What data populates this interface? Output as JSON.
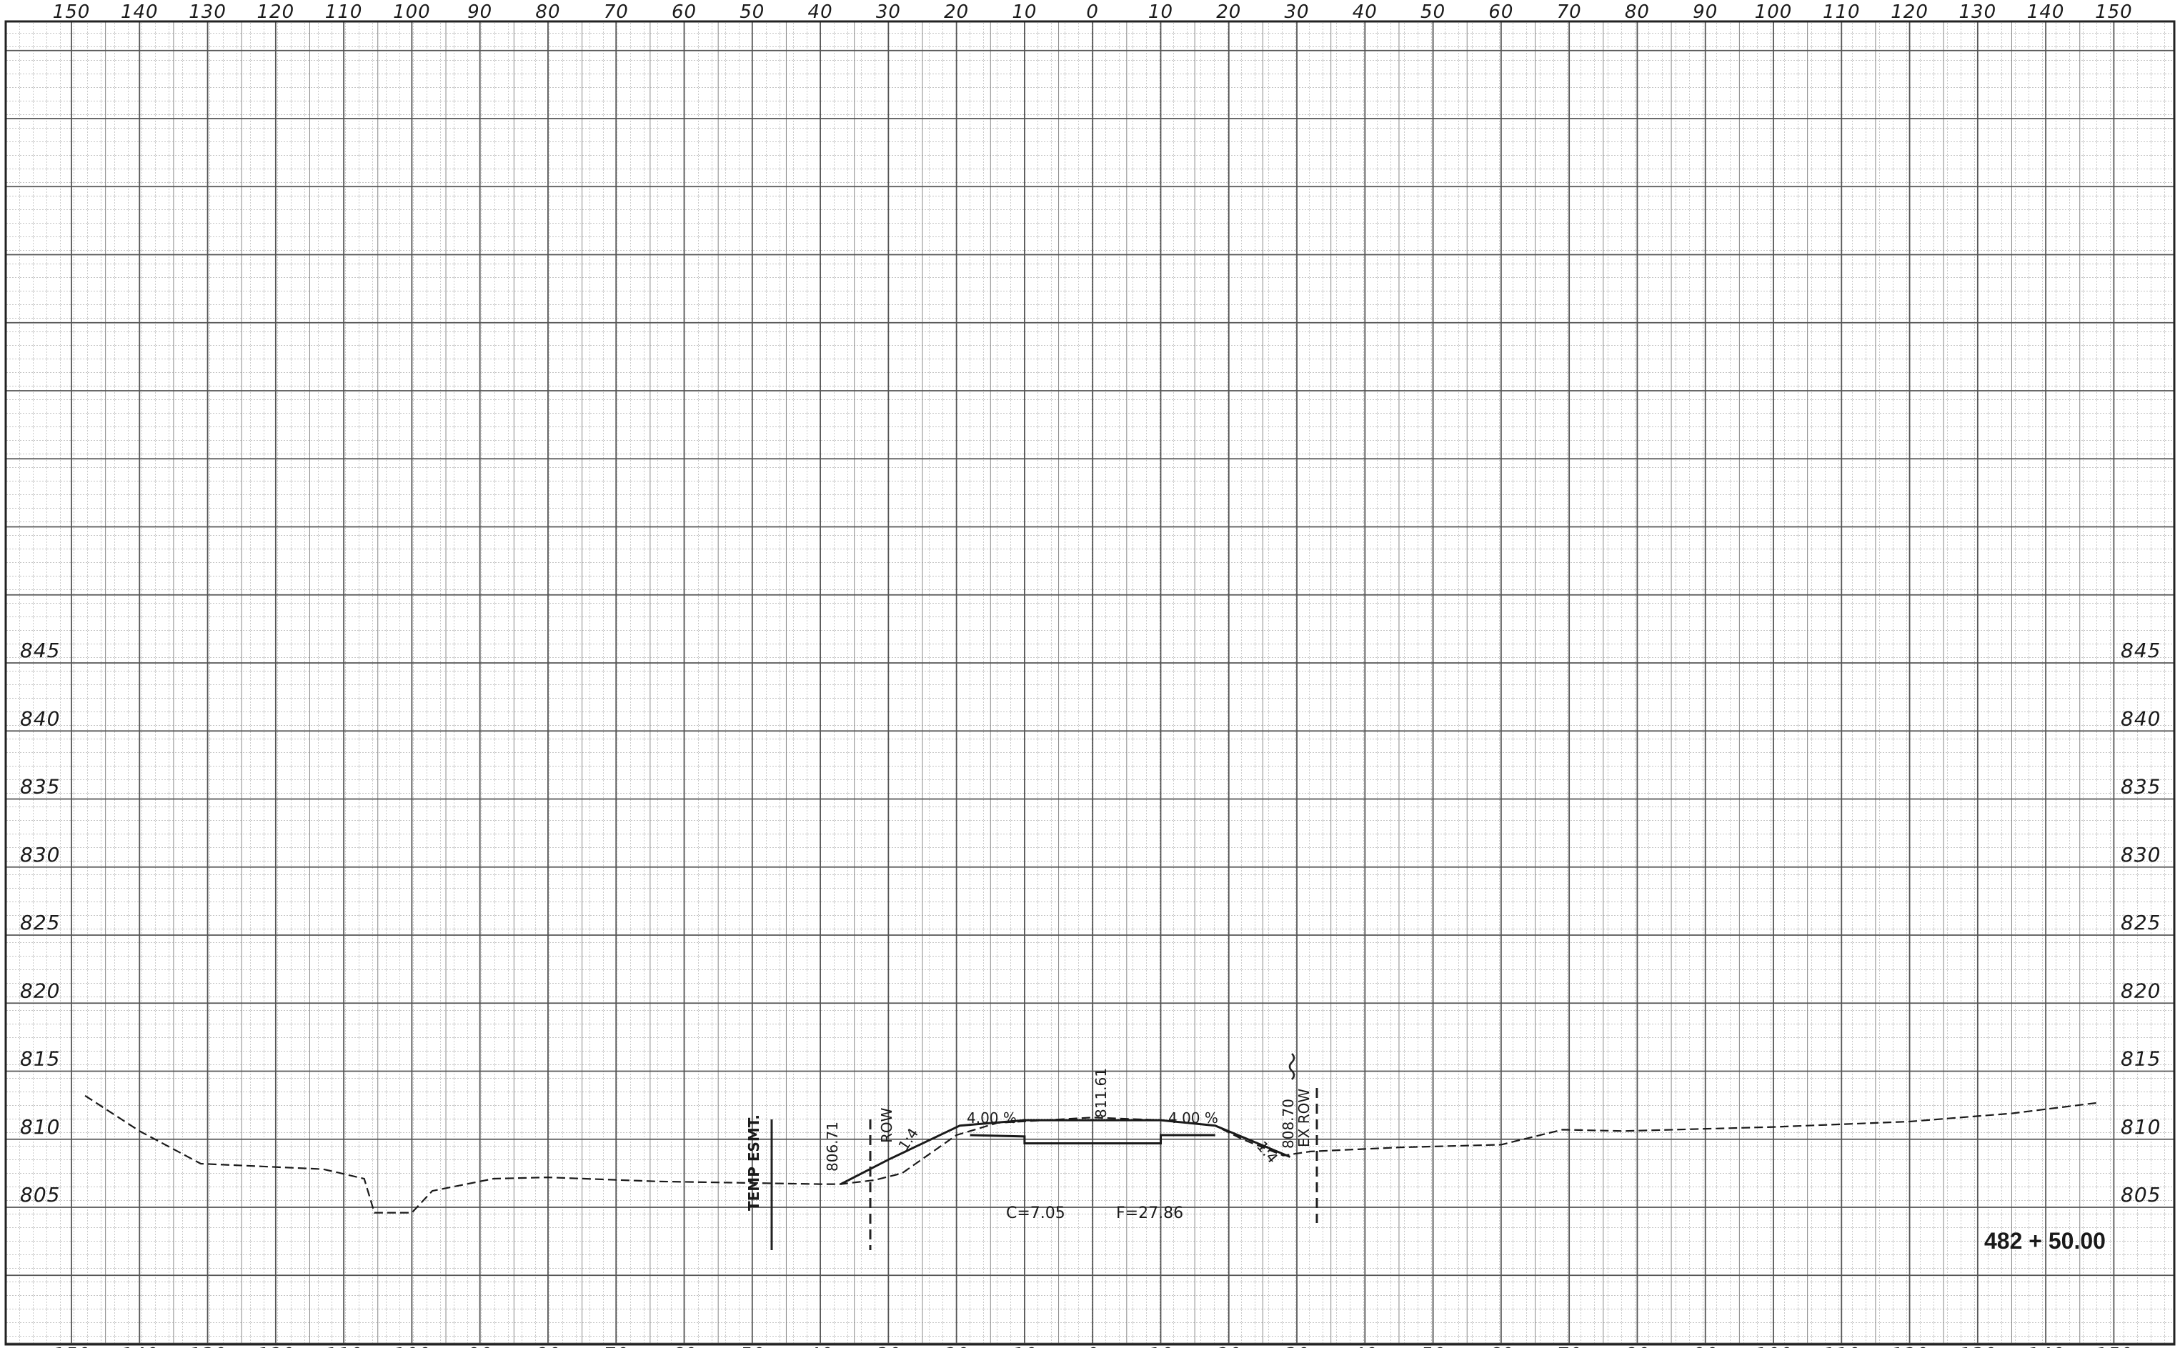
{
  "sheet": {
    "station": "482 + 50.00",
    "offset_ticks": [
      "150",
      "140",
      "130",
      "120",
      "110",
      "100",
      "90",
      "80",
      "70",
      "60",
      "50",
      "40",
      "30",
      "20",
      "10",
      "0",
      "10",
      "20",
      "30",
      "40",
      "50",
      "60",
      "70",
      "80",
      "90",
      "100",
      "110",
      "120",
      "130",
      "140",
      "150"
    ],
    "elevation_ticks": [
      "845",
      "840",
      "835",
      "830",
      "825",
      "820",
      "815",
      "810",
      "805"
    ],
    "annotations": {
      "temp_esmt": "TEMP ESMT.",
      "prop_row_elev": "806.71",
      "prop_row": "ROW",
      "slope_left": "1:4",
      "grade_left": "4.00 %",
      "centerline_elev": "811.61",
      "grade_right": "4.00 %",
      "slope_right": "1:4",
      "ex_row_elev": "808.70",
      "ex_row": "EX ROW",
      "cut": "C=7.05",
      "fill": "F=27.86"
    }
  },
  "chart_data": {
    "type": "line",
    "title": "",
    "xlabel": "",
    "ylabel": "",
    "xlim": [
      -150,
      150
    ],
    "ylim": [
      798,
      890
    ],
    "grid": true,
    "x_ticks": [
      -150,
      -140,
      -130,
      -120,
      -110,
      -100,
      -90,
      -80,
      -70,
      -60,
      -50,
      -40,
      -30,
      -20,
      -10,
      0,
      10,
      20,
      30,
      40,
      50,
      60,
      70,
      80,
      90,
      100,
      110,
      120,
      130,
      140,
      150
    ],
    "y_ticks": [
      805,
      810,
      815,
      820,
      825,
      830,
      835,
      840,
      845
    ],
    "series": [
      {
        "style": "dashed",
        "points": [
          [
            -148,
            813.2
          ],
          [
            -140,
            810.6
          ],
          [
            -131,
            808.2
          ],
          [
            -122,
            808
          ],
          [
            -113,
            807.8
          ],
          [
            -107,
            807.1
          ],
          [
            -105.5,
            804.6
          ],
          [
            -100,
            804.6
          ],
          [
            -97,
            806.2
          ],
          [
            -88,
            807.1
          ],
          [
            -80,
            807.2
          ],
          [
            -64,
            806.9
          ],
          [
            -40,
            806.7
          ],
          [
            -37,
            806.7
          ],
          [
            -32,
            807.0
          ],
          [
            -28,
            807.5
          ],
          [
            -20,
            810.3
          ],
          [
            -14,
            811.2
          ],
          [
            0,
            811.6
          ],
          [
            10,
            811.4
          ],
          [
            18,
            811.0
          ],
          [
            22,
            810.0
          ],
          [
            28,
            808.8
          ],
          [
            32,
            809.1
          ],
          [
            45,
            809.4
          ],
          [
            60,
            809.6
          ],
          [
            69,
            810.7
          ],
          [
            78,
            810.6
          ],
          [
            100,
            810.9
          ],
          [
            120,
            811.3
          ],
          [
            135,
            811.9
          ],
          [
            148,
            812.7
          ]
        ]
      },
      {
        "style": "solid",
        "points": [
          [
            -37,
            806.7
          ],
          [
            -30,
            808.5
          ],
          [
            -19.5,
            811.0
          ],
          [
            -10,
            811.4
          ],
          [
            10,
            811.4
          ],
          [
            18,
            811.0
          ],
          [
            29,
            808.7
          ]
        ]
      },
      {
        "style": "solid",
        "points": [
          [
            -18,
            810.3
          ],
          [
            -10,
            810.2
          ],
          [
            -10,
            809.7
          ],
          [
            10,
            809.7
          ],
          [
            10,
            810.3
          ],
          [
            18,
            810.3
          ]
        ]
      }
    ]
  }
}
